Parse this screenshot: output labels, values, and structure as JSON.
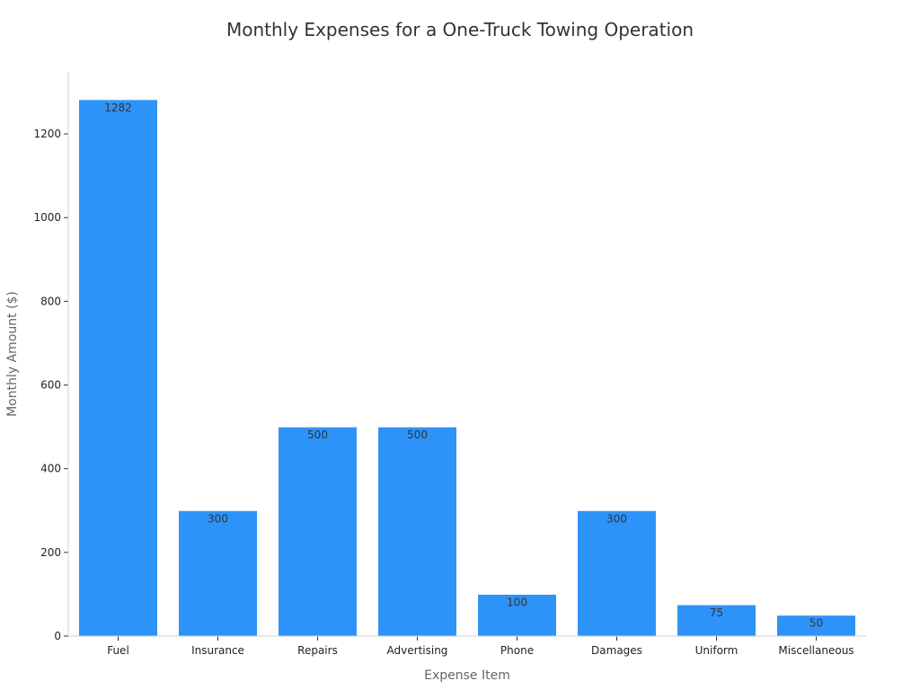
{
  "chart_data": {
    "type": "bar",
    "title": "Monthly Expenses for a One-Truck Towing Operation",
    "xlabel": "Expense Item",
    "ylabel": "Monthly Amount ($)",
    "categories": [
      "Fuel",
      "Insurance",
      "Repairs",
      "Advertising",
      "Phone",
      "Damages",
      "Uniform",
      "Miscellaneous"
    ],
    "values": [
      1282,
      300,
      500,
      500,
      100,
      300,
      75,
      50
    ],
    "data_labels": [
      "1282",
      "300",
      "500",
      "500",
      "100",
      "300",
      "75",
      "50"
    ],
    "y_ticks": [
      0,
      200,
      400,
      600,
      800,
      1000,
      1200
    ],
    "ylim": [
      0,
      1350
    ],
    "grid": false,
    "legend": "none",
    "bar_color": "#2E93F8"
  }
}
